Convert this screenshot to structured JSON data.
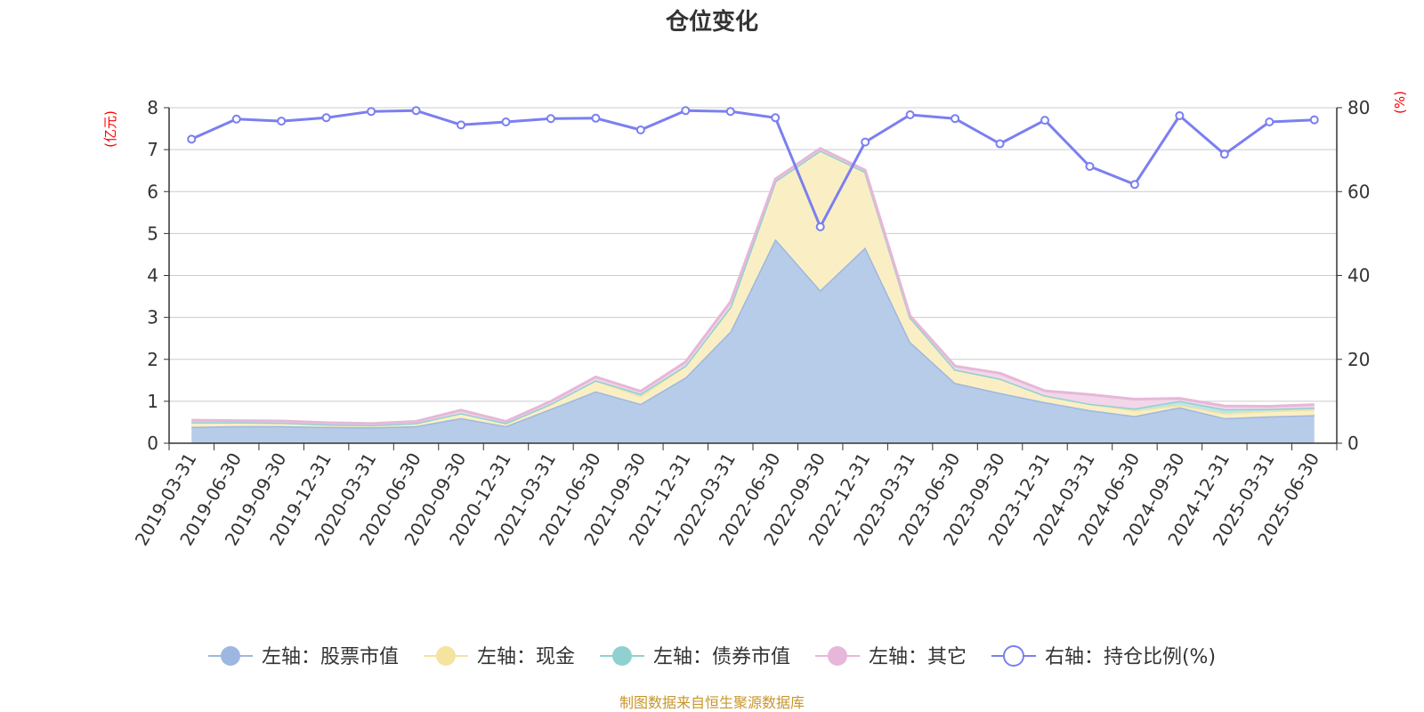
{
  "chart_data": {
    "type": "area",
    "title": "仓位变化",
    "source": "制图数据来自恒生聚源数据库",
    "left_axis": {
      "unit": "(亿元)",
      "range": [
        0,
        8
      ],
      "ticks": [
        "0",
        "1",
        "2",
        "3",
        "4",
        "5",
        "6",
        "7",
        "8"
      ]
    },
    "right_axis": {
      "unit": "(%)",
      "range": [
        0,
        80
      ],
      "ticks": [
        "0",
        "20",
        "40",
        "60",
        "80"
      ]
    },
    "grid": true,
    "legend_position": "bottom",
    "x": [
      "2019-03-31",
      "2019-06-30",
      "2019-09-30",
      "2019-12-31",
      "2020-03-31",
      "2020-06-30",
      "2020-09-30",
      "2020-12-31",
      "2021-03-31",
      "2021-06-30",
      "2021-09-30",
      "2021-12-31",
      "2022-03-31",
      "2022-06-30",
      "2022-09-30",
      "2022-12-31",
      "2023-03-31",
      "2023-06-30",
      "2023-09-30",
      "2023-12-31",
      "2024-03-31",
      "2024-06-30",
      "2024-09-30",
      "2024-12-31",
      "2025-03-31",
      "2025-06-30"
    ],
    "series": [
      {
        "name": "左轴：股票市值",
        "axis": "left",
        "stack": true,
        "color": "#9eb7e0",
        "fill": "#b7cce9",
        "values": [
          0.39,
          0.41,
          0.41,
          0.39,
          0.38,
          0.41,
          0.6,
          0.41,
          0.82,
          1.24,
          0.94,
          1.57,
          2.67,
          4.87,
          3.65,
          4.67,
          2.42,
          1.44,
          1.2,
          0.98,
          0.79,
          0.65,
          0.86,
          0.6,
          0.64,
          0.67
        ]
      },
      {
        "name": "左轴：现金",
        "axis": "left",
        "stack": true,
        "color": "#f5e3a0",
        "fill": "#faefc4",
        "values": [
          0.11,
          0.09,
          0.08,
          0.06,
          0.05,
          0.07,
          0.12,
          0.07,
          0.12,
          0.26,
          0.18,
          0.28,
          0.58,
          1.38,
          3.33,
          1.8,
          0.58,
          0.32,
          0.34,
          0.16,
          0.15,
          0.13,
          0.05,
          0.11,
          0.13,
          0.13
        ]
      },
      {
        "name": "左轴：债券市值",
        "axis": "left",
        "stack": true,
        "color": "#8fd1d0",
        "fill": "#bfe4e3",
        "values": [
          0,
          0,
          0,
          0,
          0,
          0,
          0,
          0,
          0,
          0,
          0.06,
          0,
          0,
          0,
          0,
          0,
          0,
          0,
          0,
          0,
          0,
          0.05,
          0.1,
          0.1,
          0.05,
          0.05
        ]
      },
      {
        "name": "左轴：其它",
        "axis": "left",
        "stack": true,
        "color": "#e6b7d8",
        "fill": "#f2d6e9",
        "values": [
          0.05,
          0.04,
          0.04,
          0.04,
          0.04,
          0.04,
          0.07,
          0.04,
          0.06,
          0.08,
          0.06,
          0.09,
          0.12,
          0.05,
          0.05,
          0.04,
          0.04,
          0.08,
          0.13,
          0.11,
          0.22,
          0.22,
          0.06,
          0.08,
          0.06,
          0.07
        ]
      },
      {
        "name": "右轴：持仓比例(%)",
        "axis": "right",
        "stack": false,
        "color": "#7b7ff0",
        "values": [
          72.5,
          77.3,
          76.8,
          77.6,
          79.1,
          79.3,
          75.9,
          76.6,
          77.4,
          77.5,
          74.7,
          79.3,
          79.1,
          77.6,
          51.6,
          71.8,
          78.3,
          77.4,
          71.4,
          77.0,
          66.0,
          61.7,
          78.1,
          68.9,
          76.6,
          77.1
        ]
      }
    ]
  }
}
